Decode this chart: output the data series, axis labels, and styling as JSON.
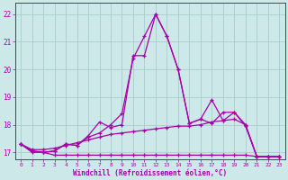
{
  "xlabel": "Windchill (Refroidissement éolien,°C)",
  "background_color": "#cce8e8",
  "grid_color": "#aacccc",
  "line_color": "#aa00aa",
  "xlim": [
    -0.5,
    23.5
  ],
  "ylim": [
    16.75,
    22.4
  ],
  "xtick_labels": [
    "0",
    "1",
    "2",
    "3",
    "4",
    "5",
    "6",
    "7",
    "8",
    "9",
    "10",
    "11",
    "12",
    "13",
    "14",
    "15",
    "16",
    "17",
    "18",
    "19",
    "20",
    "21",
    "22",
    "23"
  ],
  "ytick_vals": [
    17,
    18,
    19,
    20,
    21,
    22
  ],
  "series": [
    [
      17.3,
      17.0,
      17.0,
      16.9,
      16.9,
      16.9,
      16.9,
      16.9,
      16.9,
      16.9,
      16.9,
      16.9,
      16.9,
      16.9,
      16.9,
      16.9,
      16.9,
      16.9,
      16.9,
      16.9,
      16.9,
      16.85,
      16.85,
      16.85
    ],
    [
      17.3,
      17.1,
      17.1,
      17.15,
      17.25,
      17.35,
      17.45,
      17.55,
      17.65,
      17.7,
      17.75,
      17.8,
      17.85,
      17.9,
      17.95,
      17.95,
      18.0,
      18.1,
      18.15,
      18.2,
      18.0,
      16.85,
      16.85,
      16.85
    ],
    [
      17.3,
      17.05,
      17.0,
      17.05,
      17.3,
      17.25,
      17.6,
      18.1,
      17.9,
      18.0,
      20.5,
      20.5,
      22.0,
      21.2,
      20.0,
      18.05,
      18.2,
      18.9,
      18.15,
      18.45,
      17.95,
      16.85,
      16.85,
      16.85
    ],
    [
      17.3,
      17.05,
      17.0,
      17.05,
      17.3,
      17.25,
      17.55,
      17.7,
      18.0,
      18.4,
      20.4,
      21.2,
      22.0,
      21.2,
      20.0,
      18.05,
      18.2,
      18.05,
      18.45,
      18.45,
      18.0,
      16.85,
      16.85,
      16.85
    ]
  ]
}
